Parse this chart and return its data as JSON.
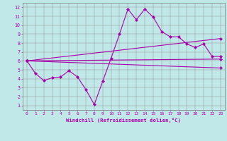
{
  "bg_color": "#c0e8e8",
  "line_color": "#aa00aa",
  "xlabel": "Windchill (Refroidissement éolien,°C)",
  "xlim": [
    -0.5,
    23.5
  ],
  "ylim": [
    0.5,
    12.5
  ],
  "xticks": [
    0,
    1,
    2,
    3,
    4,
    5,
    6,
    7,
    8,
    9,
    10,
    11,
    12,
    13,
    14,
    15,
    16,
    17,
    18,
    19,
    20,
    21,
    22,
    23
  ],
  "yticks": [
    1,
    2,
    3,
    4,
    5,
    6,
    7,
    8,
    9,
    10,
    11,
    12
  ],
  "series1": [
    [
      0,
      6.0
    ],
    [
      1,
      4.6
    ],
    [
      2,
      3.8
    ],
    [
      3,
      4.1
    ],
    [
      4,
      4.2
    ],
    [
      5,
      4.9
    ],
    [
      6,
      4.2
    ],
    [
      7,
      2.8
    ],
    [
      8,
      1.1
    ],
    [
      9,
      3.7
    ],
    [
      10,
      6.3
    ],
    [
      11,
      9.0
    ],
    [
      12,
      11.8
    ],
    [
      13,
      10.6
    ],
    [
      14,
      11.8
    ],
    [
      15,
      10.9
    ],
    [
      16,
      9.3
    ],
    [
      17,
      8.7
    ],
    [
      18,
      8.7
    ],
    [
      19,
      7.9
    ],
    [
      20,
      7.5
    ],
    [
      21,
      7.9
    ],
    [
      22,
      6.5
    ],
    [
      23,
      6.5
    ]
  ],
  "series2": [
    [
      0,
      6.0
    ],
    [
      23,
      8.5
    ]
  ],
  "series3": [
    [
      0,
      6.0
    ],
    [
      23,
      6.2
    ]
  ],
  "series4": [
    [
      0,
      6.0
    ],
    [
      23,
      5.2
    ]
  ]
}
